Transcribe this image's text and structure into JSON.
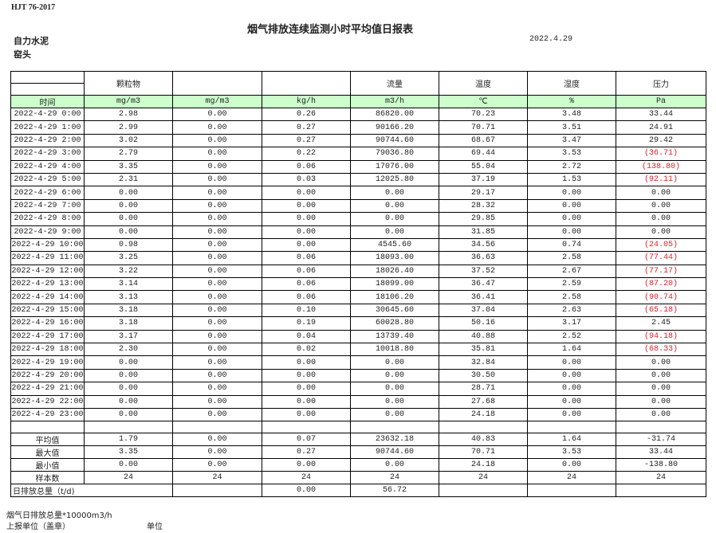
{
  "header": {
    "standard": "HJT  76-2017",
    "title": "烟气排放连续监测小时平均值日报表",
    "company": "自力水泥",
    "unit": "窑头",
    "date": "2022.4.29"
  },
  "columns": {
    "names": [
      "",
      "颗粒物",
      "",
      "",
      "流量",
      "温度",
      "湿度",
      "压力"
    ],
    "units": [
      "时间",
      "mg/m3",
      "mg/m3",
      "kg/h",
      "m3/h",
      "℃",
      "%",
      "Pa"
    ]
  },
  "rows": [
    [
      "2022-4-29 0:00",
      "2.98",
      "0.00",
      "0.26",
      "86820.00",
      "70.23",
      "3.48",
      "33.44"
    ],
    [
      "2022-4-29 1:00",
      "2.99",
      "0.00",
      "0.27",
      "90166.20",
      "70.71",
      "3.51",
      "24.91"
    ],
    [
      "2022-4-29 2:00",
      "3.02",
      "0.00",
      "0.27",
      "90744.60",
      "68.67",
      "3.47",
      "29.42"
    ],
    [
      "2022-4-29 3:00",
      "2.79",
      "0.00",
      "0.22",
      "79036.80",
      "69.44",
      "3.53",
      "(36.71)"
    ],
    [
      "2022-4-29 4:00",
      "3.35",
      "0.00",
      "0.06",
      "17076.00",
      "55.04",
      "2.72",
      "(138.80)"
    ],
    [
      "2022-4-29 5:00",
      "2.31",
      "0.00",
      "0.03",
      "12025.80",
      "37.19",
      "1.53",
      "(92.11)"
    ],
    [
      "2022-4-29 6:00",
      "0.00",
      "0.00",
      "0.00",
      "0.00",
      "29.17",
      "0.00",
      "0.00"
    ],
    [
      "2022-4-29 7:00",
      "0.00",
      "0.00",
      "0.00",
      "0.00",
      "28.32",
      "0.00",
      "0.00"
    ],
    [
      "2022-4-29 8:00",
      "0.00",
      "0.00",
      "0.00",
      "0.00",
      "29.85",
      "0.00",
      "0.00"
    ],
    [
      "2022-4-29 9:00",
      "0.00",
      "0.00",
      "0.00",
      "0.00",
      "31.85",
      "0.00",
      "0.00"
    ],
    [
      "2022-4-29 10:00",
      "0.98",
      "0.00",
      "0.00",
      "4545.60",
      "34.56",
      "0.74",
      "(24.05)"
    ],
    [
      "2022-4-29 11:00",
      "3.25",
      "0.00",
      "0.06",
      "18093.00",
      "36.63",
      "2.58",
      "(77.44)"
    ],
    [
      "2022-4-29 12:00",
      "3.22",
      "0.00",
      "0.06",
      "18026.40",
      "37.52",
      "2.67",
      "(77.17)"
    ],
    [
      "2022-4-29 13:00",
      "3.14",
      "0.00",
      "0.06",
      "18099.00",
      "36.47",
      "2.59",
      "(87.20)"
    ],
    [
      "2022-4-29 14:00",
      "3.13",
      "0.00",
      "0.06",
      "18106.20",
      "36.41",
      "2.58",
      "(90.74)"
    ],
    [
      "2022-4-29 15:00",
      "3.18",
      "0.00",
      "0.10",
      "30645.60",
      "37.04",
      "2.63",
      "(65.18)"
    ],
    [
      "2022-4-29 16:00",
      "3.18",
      "0.00",
      "0.19",
      "60028.80",
      "50.16",
      "3.17",
      "2.45"
    ],
    [
      "2022-4-29 17:00",
      "3.17",
      "0.00",
      "0.04",
      "13739.40",
      "40.88",
      "2.52",
      "(94.18)"
    ],
    [
      "2022-4-29 18:00",
      "2.30",
      "0.00",
      "0.02",
      "10018.80",
      "35.81",
      "1.64",
      "(68.33)"
    ],
    [
      "2022-4-29 19:00",
      "0.00",
      "0.00",
      "0.00",
      "0.00",
      "32.84",
      "0.00",
      "0.00"
    ],
    [
      "2022-4-29 20:00",
      "0.00",
      "0.00",
      "0.00",
      "0.00",
      "30.50",
      "0.00",
      "0.00"
    ],
    [
      "2022-4-29 21:00",
      "0.00",
      "0.00",
      "0.00",
      "0.00",
      "28.71",
      "0.00",
      "0.00"
    ],
    [
      "2022-4-29 22:00",
      "0.00",
      "0.00",
      "0.00",
      "0.00",
      "27.68",
      "0.00",
      "0.00"
    ],
    [
      "2022-4-29 23:00",
      "0.00",
      "0.00",
      "0.00",
      "0.00",
      "24.18",
      "0.00",
      "0.00"
    ]
  ],
  "stats": [
    [
      "平均值",
      "1.79",
      "0.00",
      "0.07",
      "23632.18",
      "40.83",
      "1.64",
      "-31.74"
    ],
    [
      "最大值",
      "3.35",
      "0.00",
      "0.27",
      "90744.60",
      "70.71",
      "3.53",
      "33.44"
    ],
    [
      "最小值",
      "0.00",
      "0.00",
      "0.00",
      "0.00",
      "24.18",
      "0.00",
      "-138.80"
    ],
    [
      "样本数",
      "24",
      "24",
      "24",
      "24",
      "24",
      "24",
      "24"
    ]
  ],
  "total": {
    "label": "日排放总量（t/d)",
    "values": [
      "",
      "0.00",
      "56.72",
      "",
      "",
      ""
    ]
  },
  "footer": {
    "note": "烟气日排放总量*10000m3/h",
    "reporter": "上报单位（盖章）",
    "unit_label": "单位"
  },
  "colors": {
    "header_fill": "#ccffcc",
    "negative": "#e0202a"
  }
}
